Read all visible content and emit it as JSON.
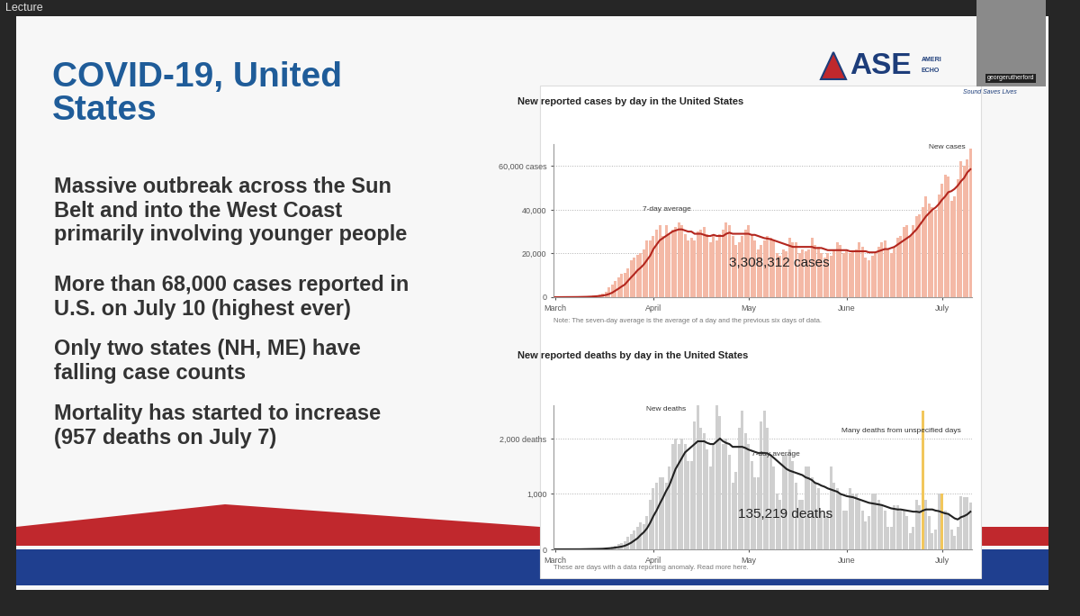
{
  "screen": {
    "tab_label": "Lecture",
    "presenter": "georgerutherford"
  },
  "slide": {
    "title": "COVID-19, United\nStates",
    "bullets": [
      "Massive outbreak across the Sun\nBelt and into the West Coast\nprimarily involving younger people",
      "More than 68,000 cases reported in\nU.S. on July 10 (highest ever)",
      "Only two states (NH, ME) have\nfalling case counts",
      "Mortality has started to increase\n(957 deaths on July 7)"
    ],
    "logo": {
      "mark": "ASE",
      "name_fragments": [
        "AMERI",
        "ECHO"
      ],
      "tagline": "Sound Saves Lives"
    }
  },
  "chart_data": [
    {
      "type": "bar",
      "title": "New reported cases by day in the United States",
      "categories": [
        "March",
        null,
        null,
        null,
        null,
        null,
        null,
        null,
        null,
        null,
        null,
        null,
        null,
        null,
        null,
        null,
        null,
        null,
        null,
        null,
        null,
        null,
        null,
        null,
        null,
        null,
        null,
        null,
        null,
        null,
        null,
        "April",
        null,
        null,
        null,
        null,
        null,
        null,
        null,
        null,
        null,
        null,
        null,
        null,
        null,
        null,
        null,
        null,
        null,
        null,
        null,
        null,
        null,
        null,
        null,
        null,
        null,
        null,
        null,
        null,
        null,
        "May",
        null,
        null,
        null,
        null,
        null,
        null,
        null,
        null,
        null,
        null,
        null,
        null,
        null,
        null,
        null,
        null,
        null,
        null,
        null,
        null,
        null,
        null,
        null,
        null,
        null,
        null,
        null,
        null,
        null,
        null,
        "June",
        null,
        null,
        null,
        null,
        null,
        null,
        null,
        null,
        null,
        null,
        null,
        null,
        null,
        null,
        null,
        null,
        null,
        null,
        null,
        null,
        null,
        null,
        null,
        null,
        null,
        null,
        null,
        null,
        null,
        "July",
        null,
        null,
        null,
        null,
        null,
        null,
        null,
        null,
        null
      ],
      "series": [
        {
          "name": "New cases",
          "type": "bar",
          "color": "#f4b9a6",
          "values": [
            10,
            20,
            30,
            50,
            60,
            90,
            110,
            130,
            190,
            290,
            420,
            520,
            700,
            960,
            1100,
            1800,
            2600,
            4500,
            5600,
            7300,
            9000,
            10500,
            11000,
            13000,
            17000,
            18000,
            19500,
            20000,
            22000,
            26000,
            26000,
            28000,
            31000,
            33000,
            28000,
            33000,
            29000,
            31000,
            32000,
            34000,
            33000,
            29000,
            26000,
            27000,
            26000,
            30000,
            31000,
            32000,
            29000,
            25000,
            28000,
            26000,
            29000,
            31000,
            34000,
            33000,
            28000,
            24000,
            25000,
            28000,
            31000,
            33000,
            29000,
            26000,
            22000,
            24000,
            26000,
            28000,
            27000,
            26000,
            20000,
            19000,
            22000,
            21000,
            27000,
            25000,
            25000,
            20000,
            22000,
            21000,
            22000,
            27000,
            24000,
            23000,
            20000,
            18000,
            20000,
            19000,
            22000,
            25000,
            24000,
            20000,
            21000,
            20000,
            21000,
            22000,
            25000,
            23000,
            18000,
            17000,
            19000,
            20000,
            23000,
            25000,
            26000,
            22000,
            20000,
            23000,
            27000,
            28000,
            32000,
            33000,
            28000,
            33000,
            37000,
            38000,
            41000,
            46000,
            43000,
            41000,
            40000,
            47000,
            52000,
            56000,
            55000,
            44000,
            46000,
            54000,
            62000,
            60000,
            63000,
            68000
          ]
        },
        {
          "name": "7-day average",
          "type": "line",
          "color": "#b3261e",
          "values": [
            5,
            10,
            20,
            30,
            40,
            50,
            70,
            80,
            100,
            130,
            180,
            240,
            320,
            430,
            550,
            750,
            1000,
            1450,
            2050,
            2950,
            3900,
            4900,
            5800,
            7500,
            9100,
            10600,
            12300,
            13500,
            15000,
            17000,
            19000,
            22000,
            24000,
            26000,
            27000,
            28000,
            29000,
            30000,
            30500,
            31000,
            31000,
            30500,
            30000,
            30000,
            29000,
            29000,
            29000,
            28500,
            28000,
            28000,
            28500,
            28000,
            28000,
            28000,
            29000,
            29500,
            29000,
            29000,
            29000,
            29000,
            29000,
            29000,
            28500,
            28500,
            28000,
            27500,
            27000,
            26800,
            26500,
            26000,
            25500,
            25000,
            24500,
            24000,
            23500,
            23000,
            23000,
            23000,
            23000,
            23000,
            23000,
            23000,
            22500,
            22500,
            22500,
            22000,
            21500,
            21500,
            21500,
            21500,
            21500,
            21500,
            21500,
            21000,
            21000,
            21000,
            21000,
            21000,
            21000,
            20500,
            20500,
            20500,
            21000,
            21500,
            22000,
            22000,
            22500,
            23000,
            24000,
            25000,
            26000,
            27000,
            28000,
            29500,
            31000,
            33000,
            35000,
            37000,
            38500,
            40000,
            41000,
            42500,
            44500,
            46000,
            48000,
            48500,
            49500,
            51000,
            53000,
            54500,
            57000,
            58500
          ]
        }
      ],
      "ylim": [
        0,
        70000
      ],
      "yticks": [
        0,
        {
          "value": 20000,
          "label": "20,000"
        },
        {
          "value": 40000,
          "label": "40,000"
        },
        {
          "value": 60000,
          "label": "60,000 cases"
        }
      ],
      "grid": true,
      "annotations": [
        "3,308,312 cases"
      ],
      "note": "Note: The seven-day average is the average of a day and the previous six days of data."
    },
    {
      "type": "bar",
      "title": "New reported deaths by day in the United States",
      "categories": [
        "March",
        null,
        null,
        null,
        null,
        null,
        null,
        null,
        null,
        null,
        null,
        null,
        null,
        null,
        null,
        null,
        null,
        null,
        null,
        null,
        null,
        null,
        null,
        null,
        null,
        null,
        null,
        null,
        null,
        null,
        null,
        "April",
        null,
        null,
        null,
        null,
        null,
        null,
        null,
        null,
        null,
        null,
        null,
        null,
        null,
        null,
        null,
        null,
        null,
        null,
        null,
        null,
        null,
        null,
        null,
        null,
        null,
        null,
        null,
        null,
        null,
        "May",
        null,
        null,
        null,
        null,
        null,
        null,
        null,
        null,
        null,
        null,
        null,
        null,
        null,
        null,
        null,
        null,
        null,
        null,
        null,
        null,
        null,
        null,
        null,
        null,
        null,
        null,
        null,
        null,
        null,
        null,
        "June",
        null,
        null,
        null,
        null,
        null,
        null,
        null,
        null,
        null,
        null,
        null,
        null,
        null,
        null,
        null,
        null,
        null,
        null,
        null,
        null,
        null,
        null,
        null,
        null,
        null,
        null,
        null,
        null,
        null,
        "July",
        null,
        null,
        null,
        null,
        null,
        null,
        null,
        null,
        null
      ],
      "series": [
        {
          "name": "New deaths",
          "type": "bar",
          "color": "#cfcfcf",
          "values": [
            1,
            1,
            3,
            2,
            1,
            2,
            3,
            2,
            4,
            6,
            8,
            10,
            12,
            14,
            18,
            22,
            30,
            40,
            55,
            70,
            90,
            120,
            140,
            230,
            270,
            340,
            400,
            480,
            450,
            600,
            900,
            1100,
            1200,
            1300,
            1300,
            1200,
            1500,
            1900,
            2000,
            1900,
            2000,
            1900,
            1600,
            1600,
            2300,
            2600,
            2200,
            2100,
            1800,
            1500,
            1900,
            2600,
            2400,
            1900,
            2000,
            1700,
            1200,
            1400,
            2200,
            2500,
            2100,
            1900,
            1600,
            1300,
            1300,
            2300,
            2500,
            2200,
            1700,
            1500,
            1000,
            900,
            1700,
            1700,
            1800,
            1600,
            1200,
            900,
            900,
            1500,
            1500,
            1300,
            1200,
            1100,
            700,
            600,
            700,
            1500,
            1200,
            1100,
            1000,
            700,
            700,
            1100,
            1000,
            1000,
            900,
            700,
            500,
            600,
            1000,
            1000,
            900,
            800,
            700,
            400,
            400,
            800,
            800,
            700,
            700,
            600,
            300,
            400,
            900,
            800,
            null,
            900,
            600,
            300,
            350,
            1000,
            null,
            700,
            650,
            350,
            250,
            400,
            957,
            950,
            950,
            850
          ]
        },
        {
          "name": "Many deaths from unspecified days",
          "type": "bar",
          "color": "#f2c75c",
          "values": [
            null,
            null,
            null,
            null,
            null,
            null,
            null,
            null,
            null,
            null,
            null,
            null,
            null,
            null,
            null,
            null,
            null,
            null,
            null,
            null,
            null,
            null,
            null,
            null,
            null,
            null,
            null,
            null,
            null,
            null,
            null,
            null,
            null,
            null,
            null,
            null,
            null,
            null,
            null,
            null,
            null,
            null,
            null,
            null,
            null,
            null,
            null,
            null,
            null,
            null,
            null,
            null,
            null,
            null,
            null,
            null,
            null,
            null,
            null,
            null,
            null,
            null,
            null,
            null,
            null,
            null,
            null,
            null,
            null,
            null,
            null,
            null,
            null,
            null,
            null,
            null,
            null,
            null,
            null,
            null,
            null,
            null,
            null,
            null,
            null,
            null,
            null,
            null,
            null,
            null,
            null,
            null,
            null,
            null,
            null,
            null,
            null,
            null,
            null,
            null,
            null,
            null,
            null,
            null,
            null,
            null,
            null,
            null,
            null,
            null,
            null,
            null,
            null,
            null,
            null,
            null,
            2500,
            null,
            null,
            null,
            null,
            null,
            1000,
            null,
            null,
            null,
            null,
            null,
            null,
            null,
            null,
            null
          ]
        },
        {
          "name": "7-day average",
          "type": "line",
          "color": "#222222",
          "values": [
            1,
            1,
            1,
            2,
            2,
            2,
            2,
            2,
            2,
            3,
            4,
            5,
            6,
            7,
            9,
            11,
            15,
            18,
            24,
            32,
            40,
            50,
            65,
            90,
            120,
            160,
            200,
            260,
            310,
            380,
            480,
            600,
            700,
            820,
            930,
            1050,
            1150,
            1300,
            1450,
            1550,
            1650,
            1750,
            1800,
            1850,
            1900,
            1950,
            1950,
            1950,
            1920,
            1900,
            1900,
            1950,
            2000,
            1950,
            1920,
            1900,
            1850,
            1850,
            1850,
            1850,
            1830,
            1800,
            1780,
            1760,
            1740,
            1740,
            1740,
            1730,
            1700,
            1650,
            1600,
            1550,
            1500,
            1450,
            1420,
            1400,
            1380,
            1360,
            1340,
            1300,
            1280,
            1250,
            1200,
            1180,
            1150,
            1130,
            1100,
            1080,
            1060,
            1040,
            1000,
            980,
            960,
            950,
            940,
            920,
            900,
            880,
            860,
            840,
            830,
            820,
            810,
            800,
            780,
            760,
            740,
            730,
            720,
            720,
            710,
            700,
            690,
            680,
            680,
            670,
            700,
            720,
            720,
            720,
            700,
            690,
            670,
            650,
            640,
            600,
            560,
            540,
            580,
            600,
            630,
            680
          ]
        }
      ],
      "ylim": [
        0,
        2600
      ],
      "yticks": [
        0,
        {
          "value": 1000,
          "label": "1,000"
        },
        {
          "value": 2000,
          "label": "2,000 deaths"
        }
      ],
      "grid": true,
      "annotations": [
        "135,219 deaths"
      ],
      "note": "These are days with a data reporting anomaly. Read more here."
    }
  ]
}
